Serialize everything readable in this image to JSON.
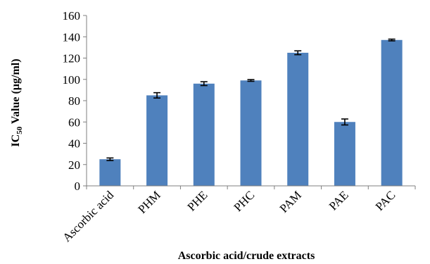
{
  "chart_data": {
    "type": "bar",
    "categories": [
      "Ascorbic acid",
      "PHM",
      "PHE",
      "PHC",
      "PAM",
      "PAE",
      "PAC"
    ],
    "values": [
      25,
      85,
      96,
      99,
      125,
      60,
      137
    ],
    "errors": [
      1.2,
      2.5,
      1.8,
      0.8,
      1.8,
      2.8,
      0.8
    ],
    "bar_color": "#4f81bd",
    "ylim": [
      0,
      160
    ],
    "yticks": [
      0,
      20,
      40,
      60,
      80,
      100,
      120,
      140,
      160
    ],
    "title": "",
    "xlabel": "Ascorbic acid/crude extracts",
    "ylabel": {
      "prefix": "IC",
      "subscript": "50",
      "suffix": " Value (µg/ml)"
    },
    "grid": false
  }
}
